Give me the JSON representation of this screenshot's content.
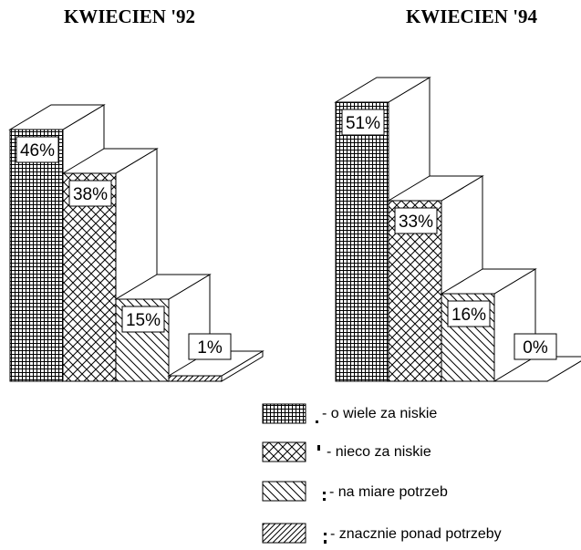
{
  "chart_data": [
    {
      "type": "bar",
      "title": "KWIECIEN '92",
      "categories": [
        "o wiele za niskie",
        "nieco za niskie",
        "na miare potrzeb",
        "znacznie ponad potrzeby"
      ],
      "values": [
        46,
        38,
        15,
        1
      ],
      "value_labels": [
        "46%",
        "38%",
        "15%",
        "1%"
      ],
      "xlabel": "",
      "ylabel": ""
    },
    {
      "type": "bar",
      "title": "KWIECIEN '94",
      "categories": [
        "o wiele za niskie",
        "nieco za niskie",
        "na miare potrzeb",
        "znacznie ponad potrzeby"
      ],
      "values": [
        51,
        33,
        16,
        0
      ],
      "value_labels": [
        "51%",
        "33%",
        "16%",
        "0%"
      ],
      "xlabel": "",
      "ylabel": ""
    }
  ],
  "legend": [
    {
      "label": "o wiele za niskie",
      "pattern": "grid"
    },
    {
      "label": "nieco za niskie",
      "pattern": "cross"
    },
    {
      "label": "na miare potrzeb",
      "pattern": "backslash"
    },
    {
      "label": "znacznie ponad potrzeby",
      "pattern": "slash"
    }
  ],
  "legend_prefix": "- ",
  "colors": {
    "ink": "#000000",
    "paper": "#ffffff"
  }
}
